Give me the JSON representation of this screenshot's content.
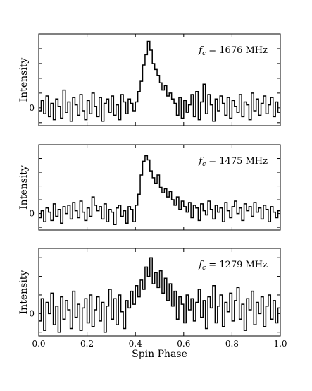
{
  "chart_data": [
    {
      "type": "line",
      "annotation_f": "f",
      "annotation_sub": "c",
      "annotation_rest": " = 1676 MHz",
      "ylabel": "Intensity",
      "ytick_label": "0",
      "xlim": [
        0.0,
        1.0
      ],
      "ylim": [
        -1.2,
        5.0
      ],
      "x": [
        0.0,
        0.01,
        0.02,
        0.03,
        0.04,
        0.05,
        0.06,
        0.07,
        0.08,
        0.09,
        0.1,
        0.11,
        0.12,
        0.13,
        0.14,
        0.15,
        0.16,
        0.17,
        0.18,
        0.19,
        0.2,
        0.21,
        0.22,
        0.23,
        0.24,
        0.25,
        0.26,
        0.27,
        0.28,
        0.29,
        0.3,
        0.31,
        0.32,
        0.33,
        0.34,
        0.35,
        0.36,
        0.37,
        0.38,
        0.39,
        0.4,
        0.41,
        0.42,
        0.43,
        0.44,
        0.45,
        0.46,
        0.47,
        0.48,
        0.49,
        0.5,
        0.51,
        0.52,
        0.53,
        0.54,
        0.55,
        0.56,
        0.57,
        0.58,
        0.59,
        0.6,
        0.61,
        0.62,
        0.63,
        0.64,
        0.65,
        0.66,
        0.67,
        0.68,
        0.69,
        0.7,
        0.71,
        0.72,
        0.73,
        0.74,
        0.75,
        0.76,
        0.77,
        0.78,
        0.79,
        0.8,
        0.81,
        0.82,
        0.83,
        0.84,
        0.85,
        0.86,
        0.87,
        0.88,
        0.89,
        0.9,
        0.91,
        0.92,
        0.93,
        0.94,
        0.95,
        0.96,
        0.97,
        0.98,
        0.99
      ],
      "values": [
        -0.2,
        0.5,
        -0.4,
        0.8,
        -0.6,
        0.3,
        -0.8,
        0.6,
        0.1,
        -0.7,
        1.2,
        -0.3,
        0.4,
        -0.9,
        0.7,
        0.2,
        -0.5,
        0.9,
        -0.2,
        -0.8,
        0.5,
        -0.4,
        1.0,
        0.1,
        -0.6,
        0.7,
        -0.9,
        0.3,
        0.6,
        -0.3,
        0.8,
        -0.5,
        0.2,
        -0.8,
        0.9,
        0.4,
        -0.4,
        0.6,
        0.3,
        -0.2,
        0.4,
        1.1,
        1.8,
        2.9,
        3.6,
        4.5,
        3.9,
        3.0,
        2.6,
        2.2,
        1.7,
        1.2,
        1.5,
        0.8,
        1.0,
        0.6,
        0.3,
        -0.5,
        0.7,
        -0.7,
        0.5,
        -0.3,
        0.2,
        0.9,
        -0.6,
        1.1,
        -0.8,
        0.4,
        1.6,
        -0.4,
        0.9,
        0.2,
        -0.9,
        0.6,
        -0.2,
        0.8,
        0.3,
        -0.5,
        0.7,
        -0.7,
        0.5,
        0.1,
        -0.3,
        0.9,
        -0.6,
        0.4,
        0.2,
        -0.8,
        1.0,
        -0.2,
        0.6,
        -0.5,
        0.3,
        0.8,
        -0.4,
        0.2,
        0.7,
        -0.6,
        0.4,
        -0.3
      ]
    },
    {
      "type": "line",
      "annotation_f": "f",
      "annotation_sub": "c",
      "annotation_rest": " = 1475 MHz",
      "ylabel": "Intensity",
      "ytick_label": "0",
      "xlim": [
        0.0,
        1.0
      ],
      "ylim": [
        -1.2,
        5.0
      ],
      "x": [
        0.0,
        0.01,
        0.02,
        0.03,
        0.04,
        0.05,
        0.06,
        0.07,
        0.08,
        0.09,
        0.1,
        0.11,
        0.12,
        0.13,
        0.14,
        0.15,
        0.16,
        0.17,
        0.18,
        0.19,
        0.2,
        0.21,
        0.22,
        0.23,
        0.24,
        0.25,
        0.26,
        0.27,
        0.28,
        0.29,
        0.3,
        0.31,
        0.32,
        0.33,
        0.34,
        0.35,
        0.36,
        0.37,
        0.38,
        0.39,
        0.4,
        0.41,
        0.42,
        0.43,
        0.44,
        0.45,
        0.46,
        0.47,
        0.48,
        0.49,
        0.5,
        0.51,
        0.52,
        0.53,
        0.54,
        0.55,
        0.56,
        0.57,
        0.58,
        0.59,
        0.6,
        0.61,
        0.62,
        0.63,
        0.64,
        0.65,
        0.66,
        0.67,
        0.68,
        0.69,
        0.7,
        0.71,
        0.72,
        0.73,
        0.74,
        0.75,
        0.76,
        0.77,
        0.78,
        0.79,
        0.8,
        0.81,
        0.82,
        0.83,
        0.84,
        0.85,
        0.86,
        0.87,
        0.88,
        0.89,
        0.9,
        0.91,
        0.92,
        0.93,
        0.94,
        0.95,
        0.96,
        0.97,
        0.98,
        0.99
      ],
      "values": [
        -0.3,
        0.2,
        -0.6,
        0.4,
        0.1,
        -0.5,
        0.7,
        -0.2,
        0.3,
        -0.7,
        0.5,
        0.0,
        0.6,
        -0.4,
        0.8,
        0.2,
        -0.3,
        0.9,
        0.1,
        -0.5,
        0.4,
        -0.2,
        1.2,
        0.6,
        0.2,
        0.5,
        -0.4,
        0.7,
        -0.6,
        0.3,
        0.1,
        -0.8,
        0.4,
        0.6,
        -0.2,
        0.2,
        -0.7,
        0.5,
        0.3,
        -0.6,
        0.6,
        1.4,
        2.8,
        3.8,
        4.2,
        3.9,
        3.1,
        2.6,
        2.2,
        2.8,
        1.9,
        1.5,
        1.8,
        1.2,
        1.6,
        1.0,
        0.6,
        1.2,
        0.3,
        0.9,
        0.5,
        0.1,
        0.8,
        -0.3,
        0.6,
        0.4,
        -0.5,
        0.7,
        0.2,
        -0.1,
        0.9,
        0.3,
        -0.4,
        0.6,
        0.1,
        0.4,
        -0.6,
        0.8,
        0.2,
        -0.3,
        0.5,
        0.9,
        0.0,
        0.4,
        -0.5,
        0.7,
        0.2,
        0.5,
        -0.2,
        0.8,
        0.1,
        0.4,
        -0.4,
        0.6,
        0.3,
        -0.6,
        0.5,
        0.1,
        -0.3,
        0.2
      ]
    },
    {
      "type": "line",
      "annotation_f": "f",
      "annotation_sub": "c",
      "annotation_rest": " = 1279 MHz",
      "ylabel": "Intensity",
      "ytick_label": "0",
      "xlabel": "Spin Phase",
      "xticks": [
        0.0,
        0.2,
        0.4,
        0.6,
        0.8,
        1.0
      ],
      "xtick_labels": [
        "0.0",
        "0.2",
        "0.4",
        "0.6",
        "0.8",
        "1.0"
      ],
      "xlim": [
        0.0,
        1.0
      ],
      "ylim": [
        -1.2,
        3.5
      ],
      "x": [
        0.0,
        0.01,
        0.02,
        0.03,
        0.04,
        0.05,
        0.06,
        0.07,
        0.08,
        0.09,
        0.1,
        0.11,
        0.12,
        0.13,
        0.14,
        0.15,
        0.16,
        0.17,
        0.18,
        0.19,
        0.2,
        0.21,
        0.22,
        0.23,
        0.24,
        0.25,
        0.26,
        0.27,
        0.28,
        0.29,
        0.3,
        0.31,
        0.32,
        0.33,
        0.34,
        0.35,
        0.36,
        0.37,
        0.38,
        0.39,
        0.4,
        0.41,
        0.42,
        0.43,
        0.44,
        0.45,
        0.46,
        0.47,
        0.48,
        0.49,
        0.5,
        0.51,
        0.52,
        0.53,
        0.54,
        0.55,
        0.56,
        0.57,
        0.58,
        0.59,
        0.6,
        0.61,
        0.62,
        0.63,
        0.64,
        0.65,
        0.66,
        0.67,
        0.68,
        0.69,
        0.7,
        0.71,
        0.72,
        0.73,
        0.74,
        0.75,
        0.76,
        0.77,
        0.78,
        0.79,
        0.8,
        0.81,
        0.82,
        0.83,
        0.84,
        0.85,
        0.86,
        0.87,
        0.88,
        0.89,
        0.9,
        0.91,
        0.92,
        0.93,
        0.94,
        0.95,
        0.96,
        0.97,
        0.98,
        0.99
      ],
      "values": [
        -0.4,
        0.8,
        -0.9,
        0.6,
        0.0,
        1.1,
        -0.6,
        0.4,
        -1.0,
        0.9,
        -0.3,
        0.7,
        0.2,
        -0.8,
        1.2,
        -0.2,
        0.5,
        -0.9,
        0.3,
        0.8,
        -0.5,
        1.0,
        -0.7,
        0.2,
        0.9,
        -0.4,
        0.6,
        -1.0,
        0.4,
        1.3,
        -0.3,
        0.8,
        -0.6,
        1.0,
        0.1,
        -0.8,
        0.7,
        0.3,
        1.2,
        0.5,
        1.5,
        0.9,
        1.8,
        1.3,
        2.5,
        2.0,
        3.0,
        1.6,
        2.2,
        1.4,
        2.3,
        1.1,
        1.9,
        0.7,
        1.6,
        0.4,
        1.2,
        -0.3,
        0.9,
        0.5,
        -0.5,
        1.0,
        0.2,
        0.8,
        -0.4,
        0.6,
        1.3,
        -0.2,
        0.7,
        -0.8,
        0.9,
        0.3,
        1.5,
        -0.5,
        0.4,
        1.0,
        -0.7,
        0.6,
        0.1,
        1.1,
        -0.4,
        0.7,
        1.4,
        -0.3,
        0.5,
        -0.9,
        0.8,
        0.2,
        1.2,
        -0.6,
        0.6,
        0.0,
        0.9,
        -0.7,
        0.4,
        1.0,
        -0.3,
        0.7,
        -0.5,
        0.3
      ]
    }
  ]
}
